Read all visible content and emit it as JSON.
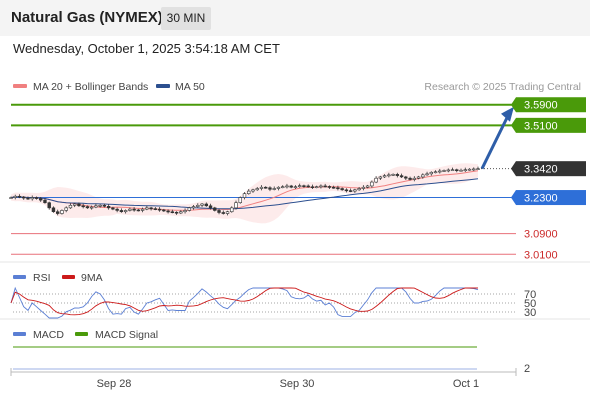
{
  "header": {
    "title": "Natural Gas (NYMEX)",
    "timeframe": "30 MIN",
    "datetime": "Wednesday, October 1, 2025 3:54:18 AM CET"
  },
  "colors": {
    "bollinger": "#f08080",
    "ma50": "#2c4f8f",
    "resistance": "#4a9a0a",
    "pivot": "#2e6fd8",
    "support": "#e8707a",
    "arrow": "#2e5ea8",
    "rsi": "#5b7fd4",
    "rsi_ma": "#cc1a1a",
    "macd": "#5b7fd4",
    "macd_signal": "#4a9a0a",
    "current_tag": "#333333"
  },
  "chart_data": [
    {
      "type": "candlestick",
      "panel": "price",
      "legend": [
        {
          "name": "MA 20 + Bollinger Bands",
          "color": "#f08080"
        },
        {
          "name": "MA 50",
          "color": "#2c4f8f"
        }
      ],
      "watermark": "Research © 2025 Trading Central",
      "ylim": [
        2.98,
        3.62
      ],
      "x_ticks": [
        "Sep 28",
        "Sep 30",
        "Oct 1"
      ],
      "current_price": "3.3420",
      "levels": [
        {
          "label": "3.5900",
          "value": 3.59,
          "kind": "resistance"
        },
        {
          "label": "3.5100",
          "value": 3.51,
          "kind": "resistance"
        },
        {
          "label": "3.2300",
          "value": 3.23,
          "kind": "pivot"
        },
        {
          "label": "3.0900",
          "value": 3.09,
          "kind": "support"
        },
        {
          "label": "3.0100",
          "value": 3.01,
          "kind": "support"
        }
      ],
      "forecast_arrow": {
        "from": 3.342,
        "to": 3.59
      },
      "close": [
        3.23,
        3.235,
        3.232,
        3.228,
        3.225,
        3.23,
        3.226,
        3.22,
        3.21,
        3.19,
        3.175,
        3.168,
        3.18,
        3.19,
        3.2,
        3.205,
        3.198,
        3.195,
        3.19,
        3.193,
        3.198,
        3.2,
        3.196,
        3.19,
        3.185,
        3.18,
        3.175,
        3.18,
        3.185,
        3.182,
        3.18,
        3.185,
        3.19,
        3.187,
        3.185,
        3.182,
        3.178,
        3.175,
        3.173,
        3.17,
        3.175,
        3.18,
        3.19,
        3.195,
        3.2,
        3.205,
        3.198,
        3.19,
        3.18,
        3.172,
        3.168,
        3.175,
        3.19,
        3.21,
        3.23,
        3.245,
        3.255,
        3.26,
        3.265,
        3.27,
        3.268,
        3.262,
        3.265,
        3.27,
        3.272,
        3.275,
        3.27,
        3.272,
        3.276,
        3.275,
        3.272,
        3.27,
        3.272,
        3.275,
        3.273,
        3.27,
        3.268,
        3.265,
        3.26,
        3.257,
        3.255,
        3.26,
        3.265,
        3.27,
        3.275,
        3.29,
        3.305,
        3.31,
        3.315,
        3.318,
        3.32,
        3.315,
        3.31,
        3.305,
        3.3,
        3.305,
        3.31,
        3.318,
        3.322,
        3.328,
        3.33,
        3.333,
        3.335,
        3.337,
        3.338,
        3.335,
        3.336,
        3.338,
        3.34,
        3.341,
        3.342
      ]
    },
    {
      "type": "line",
      "panel": "rsi",
      "legend": [
        {
          "name": "RSI",
          "color": "#5b7fd4"
        },
        {
          "name": "9MA",
          "color": "#cc1a1a"
        }
      ],
      "y_ticks": [
        "70",
        "50",
        "30"
      ],
      "ylim": [
        20,
        80
      ]
    },
    {
      "type": "line",
      "panel": "macd",
      "legend": [
        {
          "name": "MACD",
          "color": "#5b7fd4"
        },
        {
          "name": "MACD Signal",
          "color": "#4a9a0a"
        }
      ],
      "y_ticks": [
        "2"
      ]
    }
  ]
}
